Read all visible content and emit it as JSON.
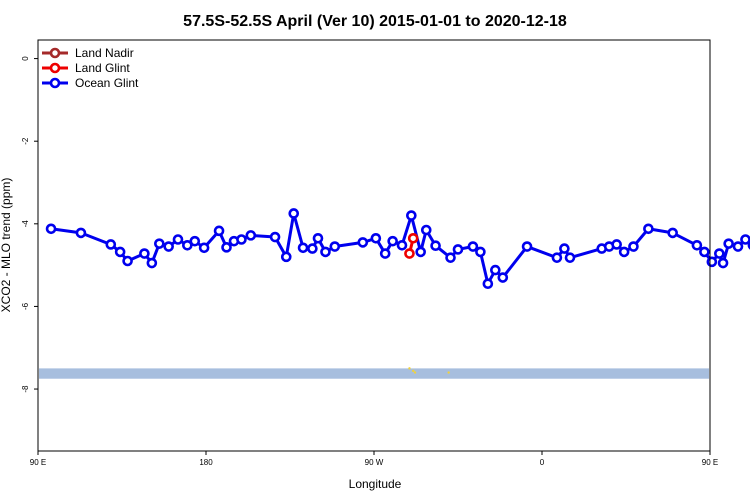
{
  "chart_data": {
    "type": "line",
    "title": "57.5S-52.5S April (Ver 10)   2015-01-01 to 2020-12-18",
    "xlabel": "Longitude",
    "ylabel": "XCO2 - MLO trend (ppm)",
    "xlim": [
      90,
      450
    ],
    "ylim": [
      -9.5,
      0.45
    ],
    "xticks": [
      {
        "value": 90,
        "label": "90 E"
      },
      {
        "value": 180,
        "label": "180"
      },
      {
        "value": 270,
        "label": "90 W"
      },
      {
        "value": 360,
        "label": "0"
      },
      {
        "value": 450,
        "label": "90 E"
      },
      {
        "value": 540,
        "label": "180"
      }
    ],
    "yticks": [
      {
        "value": 0,
        "label": "0"
      },
      {
        "value": -2,
        "label": "-2"
      },
      {
        "value": -4,
        "label": "-4"
      },
      {
        "value": -6,
        "label": "-6"
      },
      {
        "value": -8,
        "label": "-8"
      }
    ],
    "legend_position": "top-left",
    "land_band": {
      "y_range": [
        -7.75,
        -7.5
      ],
      "color": "#a7bede"
    },
    "land_specks": [
      {
        "x": 289,
        "y": -7.5
      },
      {
        "x": 291,
        "y": -7.56
      },
      {
        "x": 292,
        "y": -7.6
      },
      {
        "x": 310,
        "y": -7.6
      }
    ],
    "speck_color": "#f0d23c",
    "series": [
      {
        "name": "Land Nadir",
        "color": "#a52a2a",
        "points": []
      },
      {
        "name": "Land Glint",
        "color": "#ee0000",
        "points": [
          {
            "x": 289,
            "y": -4.72
          },
          {
            "x": 291,
            "y": -4.35
          }
        ]
      },
      {
        "name": "Ocean Glint",
        "color": "#0000ee",
        "points": [
          {
            "x": 97,
            "y": -4.12
          },
          {
            "x": 113,
            "y": -4.22
          },
          {
            "x": 129,
            "y": -4.5
          },
          {
            "x": 134,
            "y": -4.68
          },
          {
            "x": 138,
            "y": -4.9
          },
          {
            "x": 147,
            "y": -4.72
          },
          {
            "x": 151,
            "y": -4.95
          },
          {
            "x": 155,
            "y": -4.48
          },
          {
            "x": 160,
            "y": -4.55
          },
          {
            "x": 165,
            "y": -4.38
          },
          {
            "x": 170,
            "y": -4.52
          },
          {
            "x": 174,
            "y": -4.42
          },
          {
            "x": 179,
            "y": -4.58
          },
          {
            "x": 187,
            "y": -4.17
          },
          {
            "x": 191,
            "y": -4.57
          },
          {
            "x": 195,
            "y": -4.42
          },
          {
            "x": 199,
            "y": -4.38
          },
          {
            "x": 204,
            "y": -4.28
          },
          {
            "x": 217,
            "y": -4.32
          },
          {
            "x": 223,
            "y": -4.8
          },
          {
            "x": 227,
            "y": -3.75
          },
          {
            "x": 232,
            "y": -4.58
          },
          {
            "x": 237,
            "y": -4.6
          },
          {
            "x": 240,
            "y": -4.35
          },
          {
            "x": 244,
            "y": -4.68
          },
          {
            "x": 249,
            "y": -4.55
          },
          {
            "x": 264,
            "y": -4.45
          },
          {
            "x": 271,
            "y": -4.35
          },
          {
            "x": 276,
            "y": -4.72
          },
          {
            "x": 280,
            "y": -4.42
          },
          {
            "x": 285,
            "y": -4.52
          },
          {
            "x": 290,
            "y": -3.8
          },
          {
            "x": 295,
            "y": -4.68
          },
          {
            "x": 298,
            "y": -4.15
          },
          {
            "x": 303,
            "y": -4.53
          },
          {
            "x": 311,
            "y": -4.82
          },
          {
            "x": 315,
            "y": -4.62
          },
          {
            "x": 323,
            "y": -4.55
          },
          {
            "x": 327,
            "y": -4.68
          },
          {
            "x": 331,
            "y": -5.45
          },
          {
            "x": 335,
            "y": -5.12
          },
          {
            "x": 339,
            "y": -5.3
          },
          {
            "x": 352,
            "y": -4.55
          },
          {
            "x": 368,
            "y": -4.82
          },
          {
            "x": 372,
            "y": -4.6
          },
          {
            "x": 375,
            "y": -4.82
          },
          {
            "x": 392,
            "y": -4.6
          },
          {
            "x": 396,
            "y": -4.55
          },
          {
            "x": 400,
            "y": -4.5
          },
          {
            "x": 404,
            "y": -4.68
          },
          {
            "x": 409,
            "y": -4.55
          },
          {
            "x": 417,
            "y": -4.12
          },
          {
            "x": 430,
            "y": -4.22
          },
          {
            "x": 443,
            "y": -4.52
          },
          {
            "x": 447,
            "y": -4.68
          },
          {
            "x": 451,
            "y": -4.92
          },
          {
            "x": 455,
            "y": -4.72
          },
          {
            "x": 457,
            "y": -4.95
          },
          {
            "x": 460,
            "y": -4.48
          },
          {
            "x": 465,
            "y": -4.55
          },
          {
            "x": 469,
            "y": -4.38
          },
          {
            "x": 473,
            "y": -4.52
          },
          {
            "x": 476,
            "y": -4.42
          }
        ]
      }
    ]
  }
}
